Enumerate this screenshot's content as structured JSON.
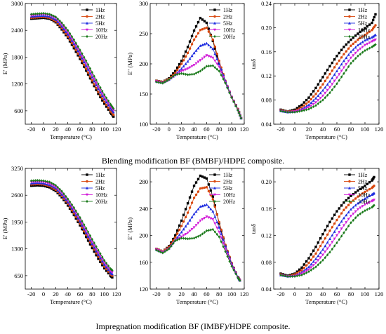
{
  "captions": {
    "top": "Blending modification BF (BMBF)/HDPE composite.",
    "bottom": "Impregnation modification BF (IMBF)/HDPE composite."
  },
  "legend_labels": [
    "1Hz",
    "2Hz",
    "5Hz",
    "10Hz",
    "20Hz"
  ],
  "colors": {
    "1Hz": "#000000",
    "2Hz": "#d9480f",
    "5Hz": "#1f2ee0",
    "10Hz": "#d21fd8",
    "20Hz": "#1b7a1b"
  },
  "chart_data": [
    {
      "id": "bmbf-storage",
      "type": "line",
      "xlabel": "Temperature (°C)",
      "ylabel": "E' (MPa)",
      "xlim": [
        -30,
        120
      ],
      "ylim": [
        300,
        3000
      ],
      "xticks": [
        -20,
        0,
        20,
        40,
        60,
        80,
        100,
        120
      ],
      "yticks": [
        600,
        1200,
        1800,
        2400,
        3000
      ],
      "x": [
        -20,
        -10,
        0,
        10,
        20,
        30,
        40,
        50,
        60,
        70,
        80,
        90,
        100,
        110,
        115
      ],
      "series": [
        {
          "name": "1Hz",
          "values": [
            2660,
            2670,
            2680,
            2660,
            2580,
            2420,
            2230,
            2000,
            1760,
            1500,
            1240,
            980,
            760,
            560,
            470
          ]
        },
        {
          "name": "2Hz",
          "values": [
            2680,
            2690,
            2700,
            2680,
            2600,
            2450,
            2260,
            2040,
            1800,
            1540,
            1280,
            1020,
            800,
            600,
            510
          ]
        },
        {
          "name": "5Hz",
          "values": [
            2710,
            2720,
            2730,
            2710,
            2640,
            2490,
            2310,
            2100,
            1860,
            1610,
            1350,
            1090,
            860,
            660,
            570
          ]
        },
        {
          "name": "10Hz",
          "values": [
            2730,
            2750,
            2760,
            2740,
            2670,
            2530,
            2350,
            2140,
            1910,
            1660,
            1400,
            1140,
            910,
            700,
            610
          ]
        },
        {
          "name": "20Hz",
          "values": [
            2760,
            2770,
            2780,
            2760,
            2700,
            2570,
            2400,
            2190,
            1960,
            1720,
            1460,
            1200,
            960,
            750,
            650
          ]
        }
      ]
    },
    {
      "id": "bmbf-loss",
      "type": "line",
      "xlabel": "Temperature (°C)",
      "ylabel": "E'' (MPa)",
      "xlim": [
        -30,
        120
      ],
      "ylim": [
        100,
        300
      ],
      "xticks": [
        -20,
        0,
        20,
        40,
        60,
        80,
        100,
        120
      ],
      "yticks": [
        100,
        150,
        200,
        250,
        300
      ],
      "x": [
        -20,
        -10,
        0,
        10,
        20,
        30,
        40,
        50,
        60,
        70,
        80,
        90,
        100,
        110,
        115
      ],
      "series": [
        {
          "name": "1Hz",
          "values": [
            172,
            170,
            176,
            188,
            205,
            228,
            255,
            276,
            268,
            238,
            200,
            170,
            145,
            125,
            110
          ]
        },
        {
          "name": "2Hz",
          "values": [
            172,
            170,
            175,
            185,
            200,
            218,
            240,
            256,
            260,
            240,
            205,
            172,
            145,
            125,
            110
          ]
        },
        {
          "name": "5Hz",
          "values": [
            171,
            169,
            174,
            182,
            192,
            204,
            218,
            230,
            234,
            225,
            200,
            172,
            145,
            124,
            110
          ]
        },
        {
          "name": "10Hz",
          "values": [
            171,
            168,
            173,
            181,
            188,
            192,
            198,
            206,
            214,
            210,
            195,
            170,
            145,
            124,
            110
          ]
        },
        {
          "name": "20Hz",
          "values": [
            170,
            168,
            174,
            182,
            184,
            182,
            183,
            188,
            196,
            197,
            188,
            168,
            144,
            123,
            110
          ]
        }
      ]
    },
    {
      "id": "bmbf-tan",
      "type": "line",
      "xlabel": "Temperature (°C)",
      "ylabel": "tanδ",
      "xlim": [
        -30,
        120
      ],
      "ylim": [
        0.04,
        0.24
      ],
      "xticks": [
        -20,
        0,
        20,
        40,
        60,
        80,
        100,
        120
      ],
      "yticks": [
        0.04,
        0.08,
        0.12,
        0.16,
        0.2,
        0.24
      ],
      "x": [
        -20,
        -10,
        0,
        10,
        20,
        30,
        40,
        50,
        60,
        70,
        80,
        90,
        100,
        110,
        115
      ],
      "series": [
        {
          "name": "1Hz",
          "values": [
            0.064,
            0.061,
            0.064,
            0.072,
            0.084,
            0.1,
            0.118,
            0.136,
            0.153,
            0.168,
            0.18,
            0.19,
            0.199,
            0.208,
            0.222
          ]
        },
        {
          "name": "2Hz",
          "values": [
            0.063,
            0.061,
            0.062,
            0.068,
            0.077,
            0.09,
            0.106,
            0.123,
            0.14,
            0.156,
            0.17,
            0.18,
            0.188,
            0.196,
            0.204
          ]
        },
        {
          "name": "5Hz",
          "values": [
            0.062,
            0.06,
            0.061,
            0.065,
            0.072,
            0.083,
            0.096,
            0.111,
            0.128,
            0.145,
            0.16,
            0.171,
            0.179,
            0.184,
            0.188
          ]
        },
        {
          "name": "10Hz",
          "values": [
            0.062,
            0.06,
            0.061,
            0.063,
            0.068,
            0.076,
            0.087,
            0.101,
            0.117,
            0.134,
            0.15,
            0.162,
            0.171,
            0.177,
            0.18
          ]
        },
        {
          "name": "20Hz",
          "values": [
            0.062,
            0.06,
            0.06,
            0.062,
            0.065,
            0.071,
            0.08,
            0.092,
            0.107,
            0.124,
            0.141,
            0.153,
            0.162,
            0.168,
            0.172
          ]
        }
      ]
    },
    {
      "id": "imbf-storage",
      "type": "line",
      "xlabel": "Temperature (°C)",
      "ylabel": "E' (MPa)",
      "xlim": [
        -30,
        120
      ],
      "ylim": [
        325,
        3250
      ],
      "xticks": [
        -20,
        0,
        20,
        40,
        60,
        80,
        100,
        120
      ],
      "yticks": [
        650,
        1300,
        1950,
        2600,
        3250
      ],
      "x": [
        -20,
        -10,
        0,
        10,
        20,
        30,
        40,
        50,
        60,
        70,
        80,
        90,
        100,
        110,
        113
      ],
      "series": [
        {
          "name": "1Hz",
          "values": [
            2830,
            2840,
            2830,
            2790,
            2700,
            2550,
            2350,
            2120,
            1870,
            1590,
            1320,
            1060,
            830,
            650,
            610
          ]
        },
        {
          "name": "2Hz",
          "values": [
            2860,
            2870,
            2860,
            2820,
            2730,
            2580,
            2390,
            2160,
            1910,
            1640,
            1370,
            1110,
            870,
            690,
            650
          ]
        },
        {
          "name": "5Hz",
          "values": [
            2890,
            2900,
            2890,
            2850,
            2770,
            2620,
            2430,
            2210,
            1960,
            1690,
            1420,
            1160,
            920,
            730,
            690
          ]
        },
        {
          "name": "10Hz",
          "values": [
            2920,
            2930,
            2920,
            2880,
            2800,
            2660,
            2470,
            2250,
            2010,
            1740,
            1470,
            1210,
            970,
            770,
            730
          ]
        },
        {
          "name": "20Hz",
          "values": [
            2950,
            2960,
            2950,
            2920,
            2840,
            2700,
            2510,
            2300,
            2060,
            1800,
            1530,
            1270,
            1020,
            820,
            780
          ]
        }
      ]
    },
    {
      "id": "imbf-loss",
      "type": "line",
      "xlabel": "Temperature (°C)",
      "ylabel": "E'' (MPa)",
      "xlim": [
        -30,
        120
      ],
      "ylim": [
        120,
        300
      ],
      "xticks": [
        -20,
        0,
        20,
        40,
        60,
        80,
        100,
        120
      ],
      "yticks": [
        120,
        160,
        200,
        240,
        280
      ],
      "x": [
        -20,
        -10,
        0,
        10,
        20,
        30,
        40,
        50,
        60,
        70,
        80,
        90,
        100,
        110,
        113
      ],
      "series": [
        {
          "name": "1Hz",
          "values": [
            180,
            176,
            184,
            200,
            222,
            248,
            274,
            289,
            285,
            258,
            218,
            184,
            158,
            138,
            133
          ]
        },
        {
          "name": "2Hz",
          "values": [
            180,
            176,
            183,
            197,
            214,
            234,
            256,
            270,
            272,
            254,
            220,
            186,
            159,
            138,
            133
          ]
        },
        {
          "name": "5Hz",
          "values": [
            179,
            175,
            181,
            193,
            205,
            218,
            232,
            243,
            246,
            236,
            212,
            184,
            158,
            138,
            133
          ]
        },
        {
          "name": "10Hz",
          "values": [
            179,
            175,
            180,
            192,
            198,
            204,
            212,
            222,
            228,
            224,
            205,
            180,
            156,
            137,
            133
          ]
        },
        {
          "name": "20Hz",
          "values": [
            178,
            174,
            180,
            192,
            196,
            195,
            196,
            200,
            207,
            209,
            198,
            176,
            154,
            137,
            133
          ]
        }
      ]
    },
    {
      "id": "imbf-tan",
      "type": "line",
      "xlabel": "Temperature (°C)",
      "ylabel": "tanδ",
      "xlim": [
        -30,
        120
      ],
      "ylim": [
        0.04,
        0.22
      ],
      "xticks": [
        -20,
        0,
        20,
        40,
        60,
        80,
        100,
        120
      ],
      "yticks": [
        0.04,
        0.08,
        0.12,
        0.16,
        0.2
      ],
      "x": [
        -20,
        -10,
        0,
        10,
        20,
        30,
        40,
        50,
        60,
        70,
        80,
        90,
        100,
        110,
        113
      ],
      "series": [
        {
          "name": "1Hz",
          "values": [
            0.063,
            0.06,
            0.063,
            0.072,
            0.086,
            0.103,
            0.122,
            0.14,
            0.156,
            0.169,
            0.179,
            0.187,
            0.194,
            0.202,
            0.207
          ]
        },
        {
          "name": "2Hz",
          "values": [
            0.062,
            0.059,
            0.062,
            0.068,
            0.079,
            0.093,
            0.11,
            0.127,
            0.143,
            0.158,
            0.169,
            0.178,
            0.185,
            0.191,
            0.194
          ]
        },
        {
          "name": "5Hz",
          "values": [
            0.061,
            0.059,
            0.06,
            0.065,
            0.073,
            0.085,
            0.099,
            0.115,
            0.131,
            0.146,
            0.159,
            0.168,
            0.175,
            0.181,
            0.183
          ]
        },
        {
          "name": "10Hz",
          "values": [
            0.061,
            0.059,
            0.059,
            0.063,
            0.069,
            0.079,
            0.091,
            0.105,
            0.12,
            0.135,
            0.149,
            0.159,
            0.166,
            0.171,
            0.173
          ]
        },
        {
          "name": "20Hz",
          "values": [
            0.061,
            0.059,
            0.059,
            0.061,
            0.066,
            0.073,
            0.083,
            0.095,
            0.109,
            0.124,
            0.139,
            0.15,
            0.157,
            0.162,
            0.165
          ]
        }
      ]
    }
  ]
}
